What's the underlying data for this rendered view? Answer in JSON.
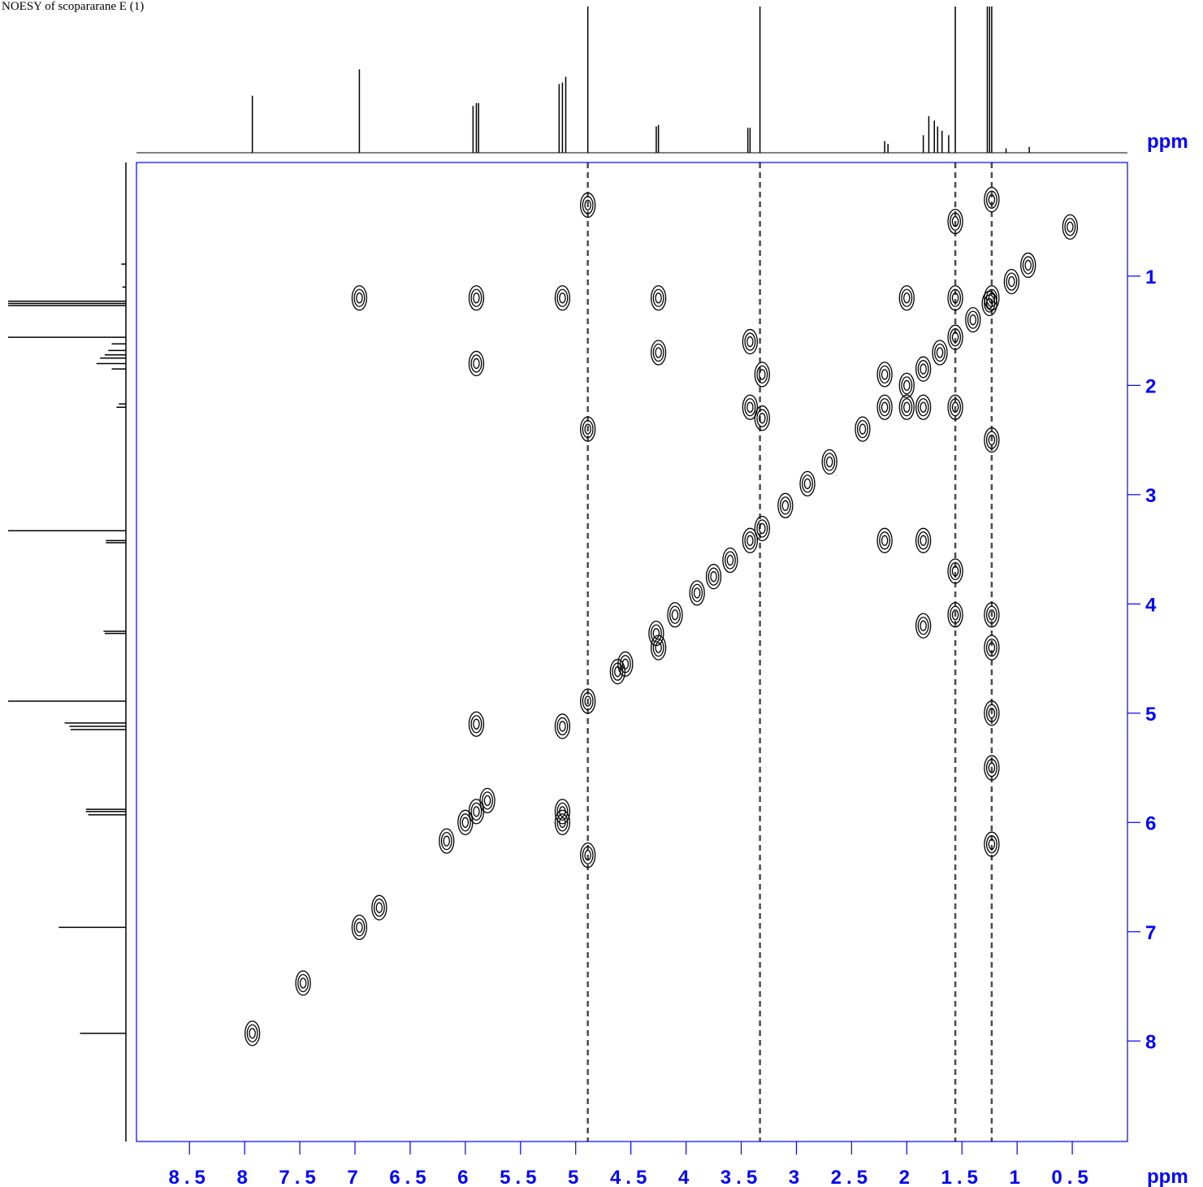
{
  "chart_data": {
    "type": "contour",
    "title": "NOESY of scopararane E (1)",
    "x_label": "ppm",
    "y_label": "ppm",
    "xlim": [
      8.98,
      0
    ],
    "ylim": [
      -0.04,
      8.92
    ],
    "xticks": [
      8.5,
      8.0,
      7.5,
      7.0,
      6.5,
      6.0,
      5.5,
      5.0,
      4.5,
      4.0,
      3.5,
      3.0,
      2.5,
      2.0,
      1.5,
      1.0,
      0.5
    ],
    "yticks": [
      1,
      2,
      3,
      4,
      5,
      6,
      7,
      8
    ],
    "axis_color": "#0000ff",
    "color": "#000000",
    "peaks": {
      "x": [
        7.93,
        7.47,
        6.96,
        6.78,
        6.17,
        6.0,
        5.9,
        5.8,
        5.12,
        4.89,
        4.62,
        4.55,
        4.27,
        4.1,
        3.9,
        3.75,
        3.6,
        3.42,
        3.31,
        3.1,
        2.9,
        2.7,
        2.4,
        2.2,
        2.0,
        1.85,
        1.7,
        1.56,
        1.4,
        1.25,
        1.05,
        0.9,
        6.96,
        5.9,
        5.9,
        5.12,
        5.12,
        5.12,
        5.9,
        4.89,
        4.89,
        4.89,
        4.25,
        4.25,
        4.25,
        3.42,
        3.42,
        3.31,
        3.31,
        2.2,
        2.2,
        1.85,
        1.85,
        1.85,
        1.56,
        1.56,
        1.56,
        1.56,
        1.56,
        1.23,
        1.23,
        1.23,
        1.23,
        1.23,
        1.23,
        1.23,
        1.23,
        0.52,
        2.0,
        2.0
      ],
      "y": [
        7.93,
        7.47,
        6.96,
        6.78,
        6.17,
        6.0,
        5.9,
        5.8,
        5.12,
        4.89,
        4.62,
        4.55,
        4.27,
        4.1,
        3.9,
        3.75,
        3.6,
        3.42,
        3.31,
        3.1,
        2.9,
        2.7,
        2.4,
        2.2,
        2.0,
        1.85,
        1.7,
        1.56,
        1.4,
        1.25,
        1.05,
        0.9,
        1.2,
        1.2,
        1.8,
        1.2,
        5.9,
        6.0,
        5.1,
        0.35,
        2.4,
        6.3,
        1.2,
        1.7,
        4.4,
        1.6,
        2.2,
        1.9,
        2.3,
        1.9,
        3.42,
        2.2,
        3.42,
        4.2,
        0.5,
        1.2,
        2.2,
        3.7,
        4.1,
        0.3,
        1.2,
        2.5,
        4.1,
        4.4,
        5.0,
        5.5,
        6.2,
        0.55,
        1.2,
        2.2
      ]
    },
    "t1_noise_x": [
      4.89,
      3.33,
      1.56,
      1.23
    ],
    "projection": {
      "x": [
        7.93,
        6.96,
        5.93,
        5.9,
        5.88,
        5.15,
        5.12,
        5.09,
        4.89,
        4.27,
        4.25,
        3.44,
        3.42,
        3.33,
        2.2,
        2.17,
        1.85,
        1.8,
        1.75,
        1.72,
        1.68,
        1.62,
        1.56,
        1.27,
        1.25,
        1.23,
        1.1,
        0.89
      ],
      "values": [
        39,
        57,
        32,
        34,
        34,
        47,
        48,
        52,
        100,
        18,
        19,
        17,
        17,
        100,
        8,
        6,
        12,
        25,
        22,
        18,
        15,
        12,
        100,
        100,
        100,
        100,
        3,
        4
      ]
    }
  }
}
